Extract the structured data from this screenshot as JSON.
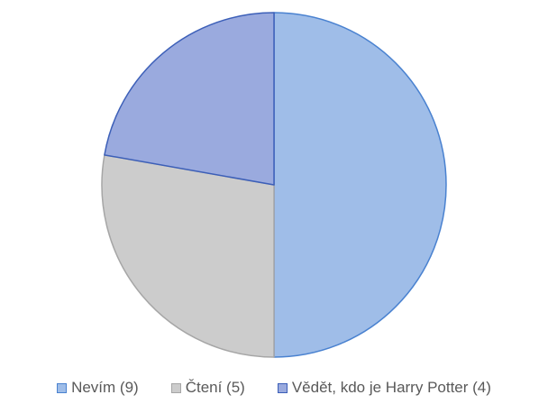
{
  "chart_data": {
    "type": "pie",
    "title": "",
    "legend_position": "bottom",
    "slices": [
      {
        "label": "Nevím (9)",
        "value": 9,
        "fill": "#9fbde8",
        "stroke": "#4a82d0"
      },
      {
        "label": "Čtení (5)",
        "value": 5,
        "fill": "#cccccc",
        "stroke": "#a6a6a6"
      },
      {
        "label": "Vědět, kdo je Harry Potter (4)",
        "value": 4,
        "fill": "#9aaade",
        "stroke": "#3c5fb8"
      }
    ]
  }
}
